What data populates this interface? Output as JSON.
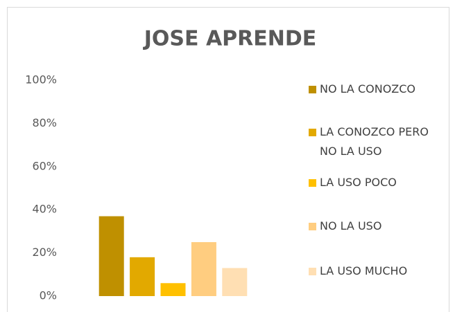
{
  "chart_data": {
    "type": "bar",
    "title": "JOSE APRENDE",
    "categories": [
      null
    ],
    "series": [
      {
        "name": "NO LA CONOZCO",
        "color": "#bf9000",
        "values": [
          37
        ]
      },
      {
        "name": "LA CONOZCO PERO NO LA USO",
        "color": "#e2a900",
        "values": [
          18
        ]
      },
      {
        "name": "LA USO POCO",
        "color": "#ffc000",
        "values": [
          6
        ]
      },
      {
        "name": "NO LA USO",
        "color": "#ffcd80",
        "values": [
          25
        ]
      },
      {
        "name": "LA USO MUCHO",
        "color": "#ffdfb3",
        "values": [
          13
        ]
      }
    ],
    "ylim": [
      0,
      100
    ],
    "yticks": [
      {
        "value": 0,
        "label": "0%"
      },
      {
        "value": 20,
        "label": "20%"
      },
      {
        "value": 40,
        "label": "40%"
      },
      {
        "value": 60,
        "label": "60%"
      },
      {
        "value": 80,
        "label": "80%"
      },
      {
        "value": 100,
        "label": "100%"
      }
    ],
    "grid": false,
    "legend": "right"
  }
}
